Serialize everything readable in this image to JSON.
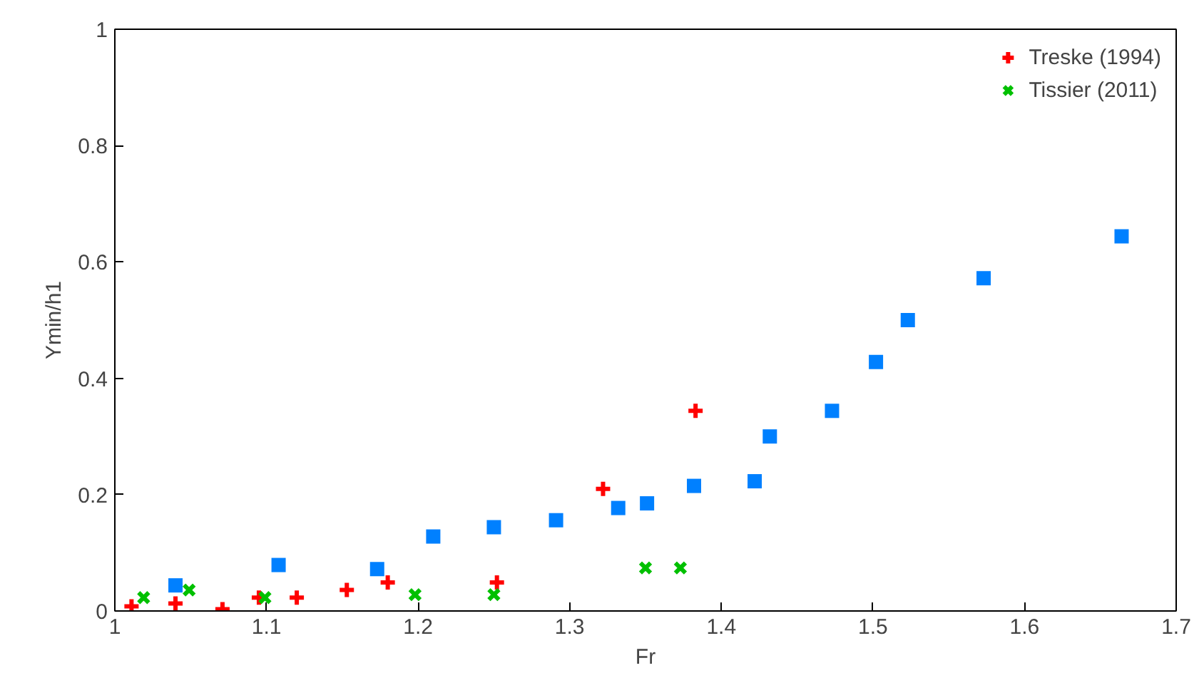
{
  "chart_data": {
    "type": "scatter",
    "xlabel": "Fr",
    "ylabel": "Ymin/h1",
    "xlim": [
      1,
      1.7
    ],
    "xticks": [
      1,
      1.1,
      1.2,
      1.3,
      1.4,
      1.5,
      1.6,
      1.7
    ],
    "ylim": [
      0,
      1
    ],
    "yticks": [
      0,
      0.2,
      0.4,
      0.6,
      0.8,
      1
    ],
    "grid": false,
    "legend": "top right",
    "series": [
      {
        "name": "Treske (1994)",
        "color": "#ff0000",
        "marker": "cross",
        "x": [
          1.011,
          1.04,
          1.071,
          1.095,
          1.12,
          1.153,
          1.18,
          1.252,
          1.322,
          1.383
        ],
        "values": [
          0.008,
          0.013,
          0.003,
          0.023,
          0.023,
          0.036,
          0.049,
          0.049,
          0.21,
          0.344
        ]
      },
      {
        "name": "Tissier (2011)",
        "color": "#00c000",
        "marker": "x",
        "x": [
          1.019,
          1.049,
          1.099,
          1.198,
          1.25,
          1.35,
          1.373
        ],
        "values": [
          0.023,
          0.036,
          0.023,
          0.028,
          0.028,
          0.074,
          0.074
        ]
      },
      {
        "color": "#0080ff",
        "marker": "square",
        "x": [
          1.04,
          1.108,
          1.173,
          1.21,
          1.25,
          1.291,
          1.332,
          1.351,
          1.382,
          1.422,
          1.432,
          1.473,
          1.502,
          1.523,
          1.573,
          1.664
        ],
        "values": [
          0.044,
          0.079,
          0.072,
          0.128,
          0.144,
          0.156,
          0.177,
          0.185,
          0.215,
          0.223,
          0.3,
          0.344,
          0.428,
          0.5,
          0.572,
          0.644
        ]
      }
    ]
  }
}
